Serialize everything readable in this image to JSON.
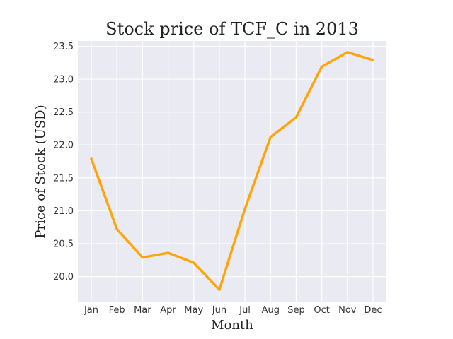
{
  "chart_data": {
    "type": "line",
    "title": "Stock price of TCF_C in 2013",
    "xlabel": "Month",
    "ylabel": "Price of Stock (USD)",
    "categories": [
      "Jan",
      "Feb",
      "Mar",
      "Apr",
      "May",
      "Jun",
      "Jul",
      "Aug",
      "Sep",
      "Oct",
      "Nov",
      "Dec"
    ],
    "series": [
      {
        "values": [
          21.79,
          20.72,
          20.29,
          20.36,
          20.21,
          19.8,
          21.03,
          22.12,
          22.42,
          23.19,
          23.41,
          23.29
        ],
        "color": "#ffa50a"
      }
    ],
    "ylim": [
      19.62,
      23.58
    ],
    "yticks": [
      "20.0",
      "20.5",
      "21.0",
      "21.5",
      "22.0",
      "22.5",
      "23.0",
      "23.5"
    ],
    "grid": true,
    "legend": "none",
    "colors": {
      "plot_background": "#eaeaf2",
      "grid": "#ffffff",
      "line": "#ffa50a"
    }
  }
}
